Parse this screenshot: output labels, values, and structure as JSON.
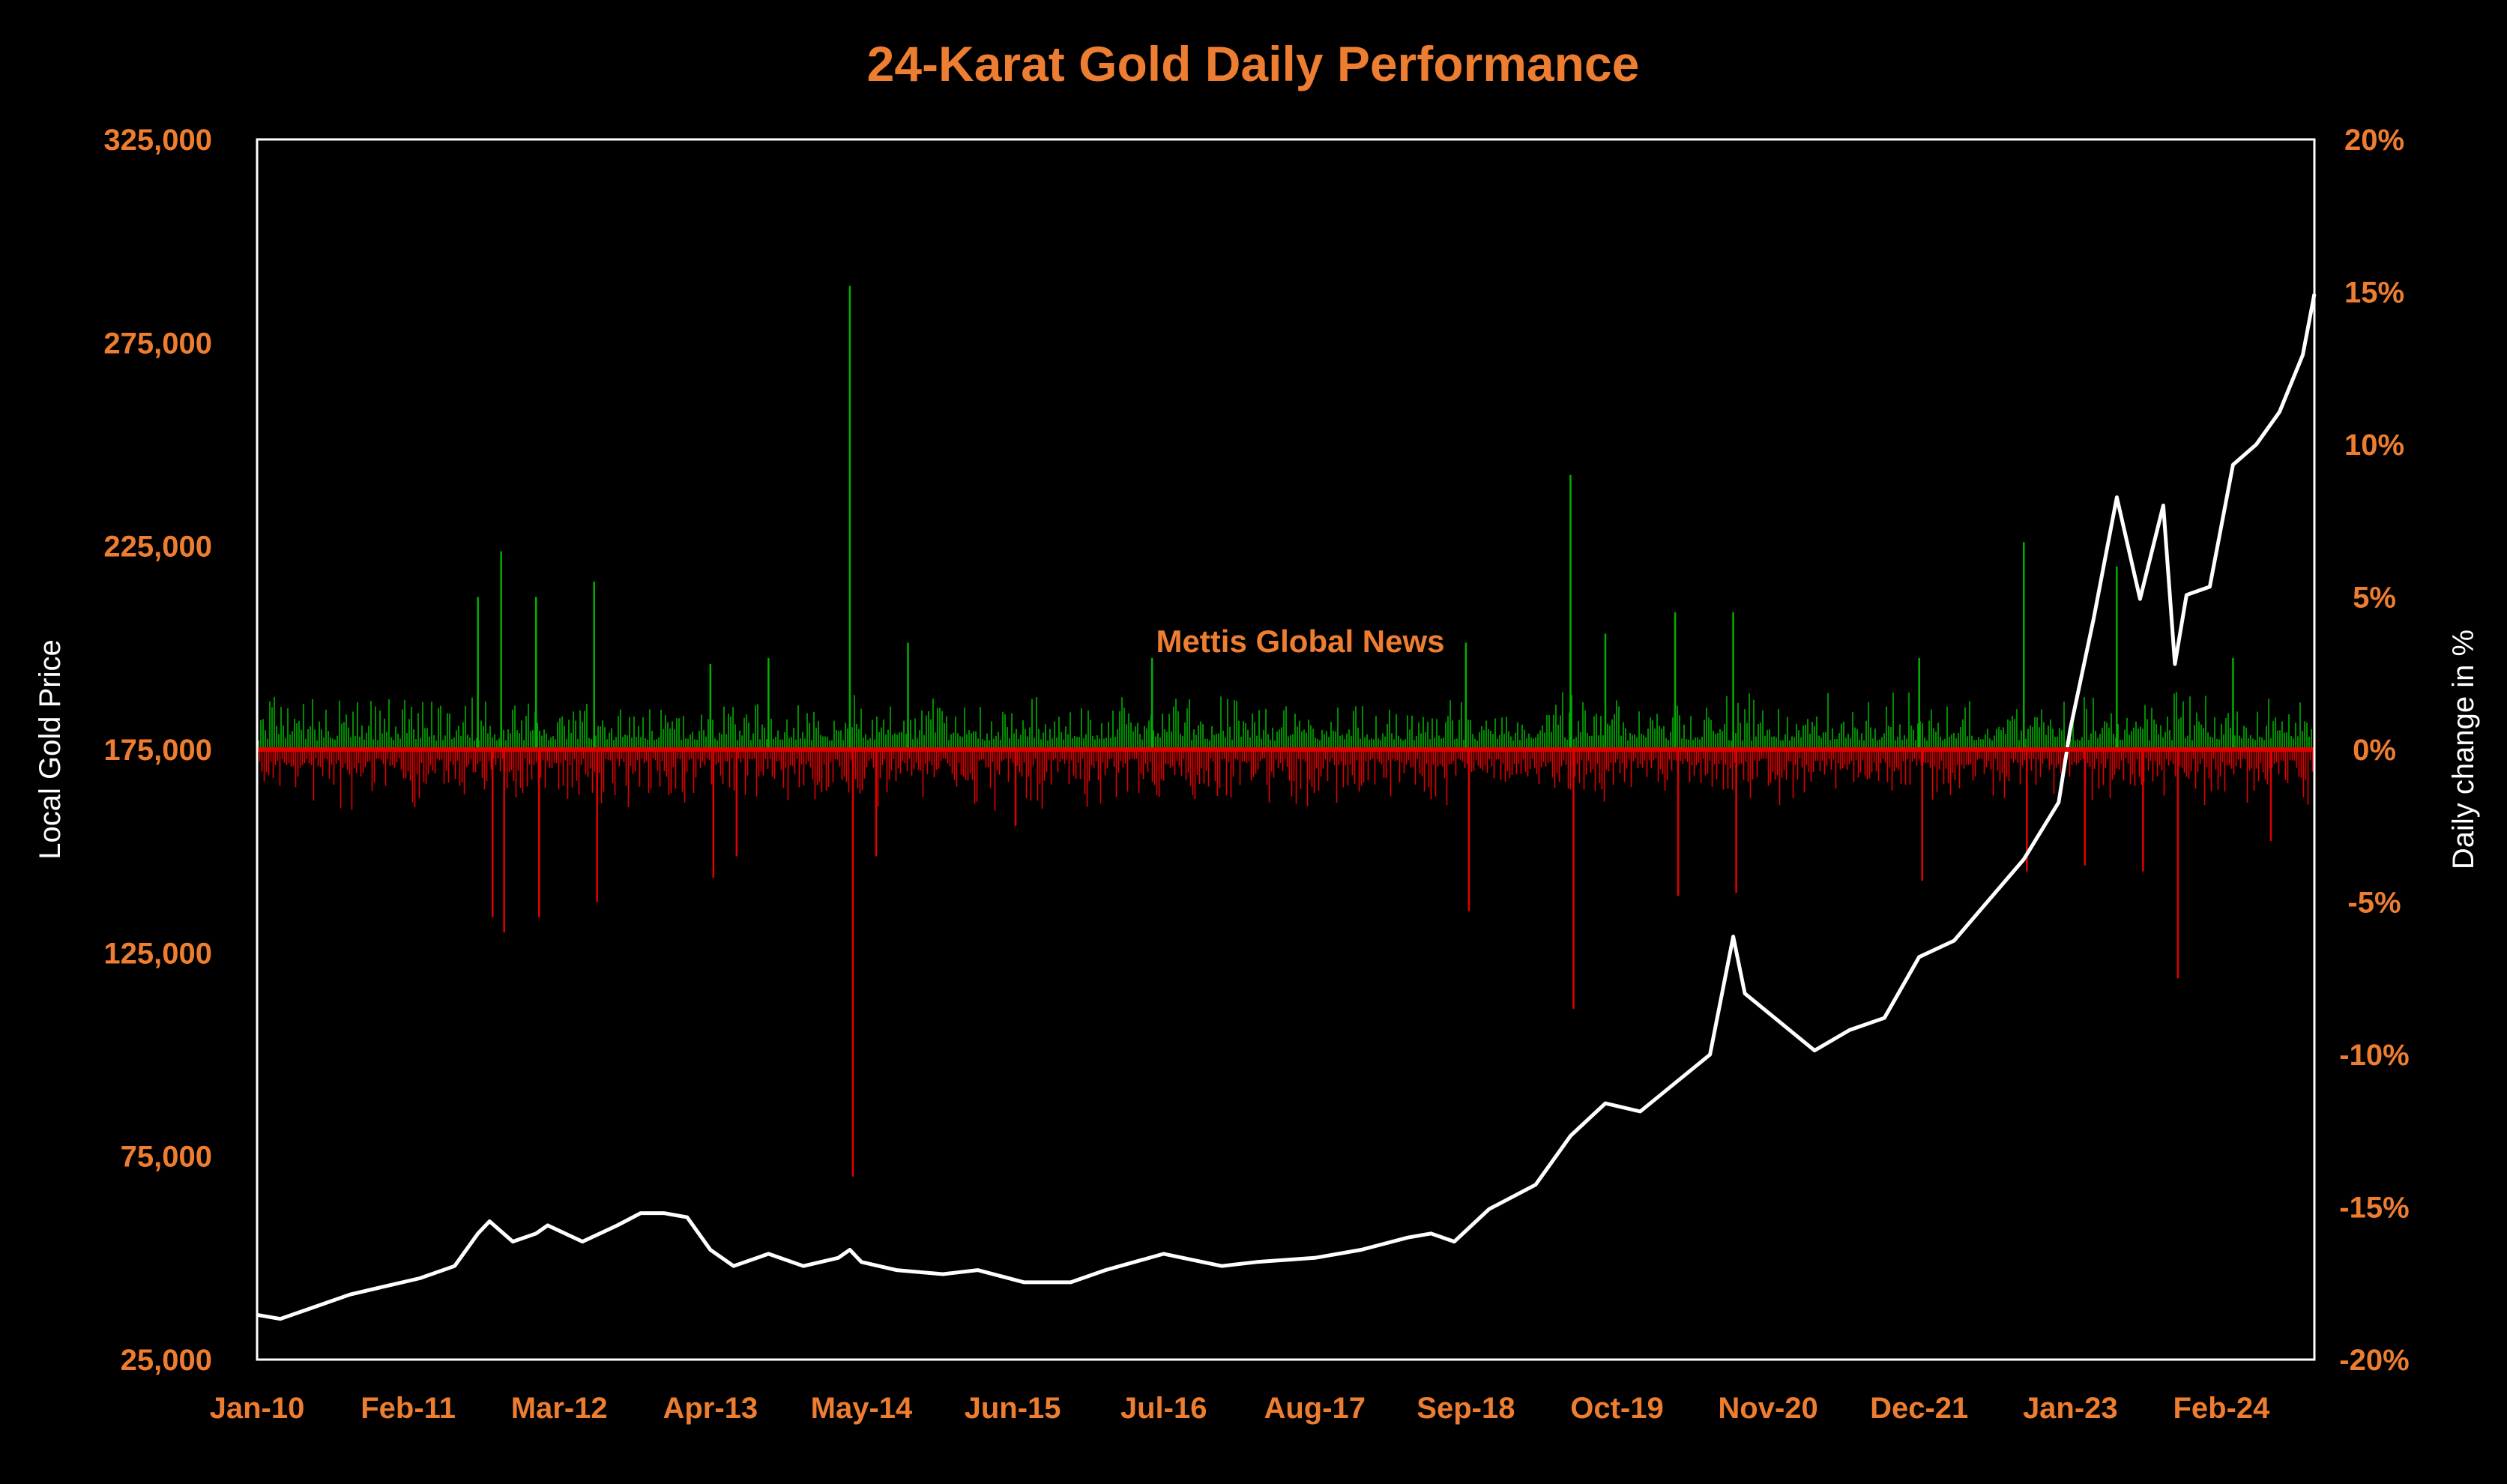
{
  "colors": {
    "background": "#000000",
    "accent": "#ED7D31",
    "price_line": "#FFFFFF",
    "gain": "#00B000",
    "loss": "#E00000",
    "axis_title": "#FFFFFF",
    "frame": "#FFFFFF"
  },
  "chart_data": {
    "type": "line",
    "title": "24-Karat Gold Daily Performance",
    "watermark": "Mettis Global News",
    "ylabel": "Local Gold Price",
    "y2label": "Daily change in %",
    "ylim": [
      25000,
      325000
    ],
    "y2lim": [
      -20,
      20
    ],
    "y_ticks": [
      "25,000",
      "75,000",
      "125,000",
      "175,000",
      "225,000",
      "275,000",
      "325,000"
    ],
    "y_tick_values": [
      25000,
      75000,
      125000,
      175000,
      225000,
      275000,
      325000
    ],
    "y2_ticks": [
      "-20%",
      "-15%",
      "-10%",
      "-5%",
      "0%",
      "5%",
      "10%",
      "15%",
      "20%"
    ],
    "y2_tick_values": [
      -20,
      -15,
      -10,
      -5,
      0,
      5,
      10,
      15,
      20
    ],
    "x_ticks": [
      "Jan-10",
      "Feb-11",
      "Mar-12",
      "Apr-13",
      "May-14",
      "Jun-15",
      "Jul-16",
      "Aug-17",
      "Sep-18",
      "Oct-19",
      "Nov-20",
      "Dec-21",
      "Jan-23",
      "Feb-24"
    ],
    "xlim": [
      "2010-01",
      "2024-10"
    ],
    "grid": false,
    "legend": "none",
    "series": [
      {
        "axis": "left",
        "kind": "line",
        "points": [
          [
            "2010-01",
            36000
          ],
          [
            "2010-03",
            35000
          ],
          [
            "2010-06",
            38000
          ],
          [
            "2010-09",
            41000
          ],
          [
            "2010-12",
            43000
          ],
          [
            "2011-03",
            45000
          ],
          [
            "2011-06",
            48000
          ],
          [
            "2011-08",
            56000
          ],
          [
            "2011-09",
            59000
          ],
          [
            "2011-11",
            54000
          ],
          [
            "2012-01",
            56000
          ],
          [
            "2012-02",
            58000
          ],
          [
            "2012-05",
            54000
          ],
          [
            "2012-08",
            58000
          ],
          [
            "2012-10",
            61000
          ],
          [
            "2012-12",
            61000
          ],
          [
            "2013-02",
            60000
          ],
          [
            "2013-04",
            52000
          ],
          [
            "2013-06",
            48000
          ],
          [
            "2013-09",
            51000
          ],
          [
            "2013-12",
            48000
          ],
          [
            "2014-03",
            50000
          ],
          [
            "2014-04",
            52000
          ],
          [
            "2014-05",
            49000
          ],
          [
            "2014-08",
            47000
          ],
          [
            "2014-12",
            46000
          ],
          [
            "2015-03",
            47000
          ],
          [
            "2015-07",
            44000
          ],
          [
            "2015-11",
            44000
          ],
          [
            "2016-02",
            47000
          ],
          [
            "2016-07",
            51000
          ],
          [
            "2016-12",
            48000
          ],
          [
            "2017-03",
            49000
          ],
          [
            "2017-08",
            50000
          ],
          [
            "2017-12",
            52000
          ],
          [
            "2018-04",
            55000
          ],
          [
            "2018-06",
            56000
          ],
          [
            "2018-08",
            54000
          ],
          [
            "2018-11",
            62000
          ],
          [
            "2019-03",
            68000
          ],
          [
            "2019-06",
            80000
          ],
          [
            "2019-09",
            88000
          ],
          [
            "2019-12",
            86000
          ],
          [
            "2020-03",
            93000
          ],
          [
            "2020-06",
            100000
          ],
          [
            "2020-08",
            129000
          ],
          [
            "2020-09",
            115000
          ],
          [
            "2020-12",
            108000
          ],
          [
            "2021-03",
            101000
          ],
          [
            "2021-06",
            106000
          ],
          [
            "2021-09",
            109000
          ],
          [
            "2021-12",
            124000
          ],
          [
            "2022-03",
            128000
          ],
          [
            "2022-06",
            138000
          ],
          [
            "2022-09",
            148000
          ],
          [
            "2022-12",
            162000
          ],
          [
            "2023-01",
            180000
          ],
          [
            "2023-03",
            207000
          ],
          [
            "2023-05",
            237000
          ],
          [
            "2023-07",
            212000
          ],
          [
            "2023-09",
            235000
          ],
          [
            "2023-10",
            196000
          ],
          [
            "2023-11",
            213000
          ],
          [
            "2024-01",
            215000
          ],
          [
            "2024-03",
            245000
          ],
          [
            "2024-05",
            250000
          ],
          [
            "2024-07",
            258000
          ],
          [
            "2024-09",
            272000
          ],
          [
            "2024-10",
            287000
          ]
        ]
      },
      {
        "axis": "right",
        "kind": "spikes",
        "points": [
          [
            "2011-08",
            5.0
          ],
          [
            "2011-09",
            -5.5
          ],
          [
            "2011-10",
            6.5
          ],
          [
            "2011-10",
            -6.0
          ],
          [
            "2012-01",
            5.0
          ],
          [
            "2012-01",
            -5.5
          ],
          [
            "2012-06",
            5.5
          ],
          [
            "2012-06",
            -5.0
          ],
          [
            "2013-04",
            2.8
          ],
          [
            "2013-04",
            -4.2
          ],
          [
            "2013-06",
            -3.5
          ],
          [
            "2013-09",
            3.0
          ],
          [
            "2014-04",
            15.2
          ],
          [
            "2014-04",
            -14.0
          ],
          [
            "2014-06",
            -3.5
          ],
          [
            "2014-09",
            3.5
          ],
          [
            "2015-06",
            -2.5
          ],
          [
            "2016-06",
            3.0
          ],
          [
            "2018-09",
            3.5
          ],
          [
            "2018-09",
            -5.3
          ],
          [
            "2019-06",
            9.0
          ],
          [
            "2019-06",
            -8.5
          ],
          [
            "2019-09",
            3.8
          ],
          [
            "2020-03",
            4.5
          ],
          [
            "2020-03",
            -4.8
          ],
          [
            "2020-08",
            4.5
          ],
          [
            "2020-08",
            -4.7
          ],
          [
            "2021-12",
            3.0
          ],
          [
            "2021-12",
            -4.3
          ],
          [
            "2022-09",
            6.8
          ],
          [
            "2022-09",
            -4.0
          ],
          [
            "2023-02",
            -3.8
          ],
          [
            "2023-05",
            6.0
          ],
          [
            "2023-07",
            -4.0
          ],
          [
            "2023-10",
            -7.5
          ],
          [
            "2024-03",
            3.0
          ],
          [
            "2024-06",
            -3.0
          ]
        ]
      }
    ]
  }
}
